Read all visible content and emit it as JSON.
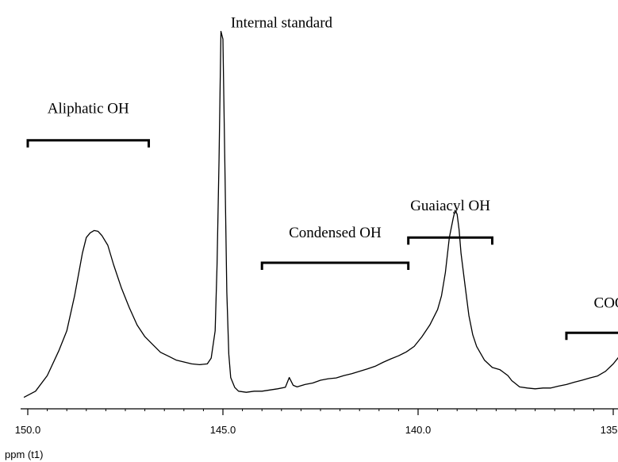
{
  "chart_data": {
    "type": "line",
    "xlabel": "ppm (t1)",
    "ylabel": "",
    "x_reversed": true,
    "xlim": [
      150.5,
      133.5
    ],
    "ylim": [
      0,
      100
    ],
    "grid": false,
    "ticks": [
      {
        "value": 150.0,
        "label": "150.0"
      },
      {
        "value": 145.0,
        "label": "145.0"
      },
      {
        "value": 140.0,
        "label": "140.0"
      },
      {
        "value": 135.0,
        "label": "135.0"
      }
    ],
    "minor_tick_step": 0.5,
    "series": [
      {
        "x": [
          150.1,
          149.8,
          149.5,
          149.2,
          149.0,
          148.8,
          148.6,
          148.5,
          148.4,
          148.3,
          148.2,
          148.1,
          147.95,
          147.8,
          147.6,
          147.4,
          147.2,
          147.0,
          146.8,
          146.6,
          146.4,
          146.2,
          146.0,
          145.8,
          145.6,
          145.4,
          145.3,
          145.2,
          145.15,
          145.1,
          145.05,
          145.0,
          144.95,
          144.9,
          144.85,
          144.8,
          144.7,
          144.6,
          144.4,
          144.2,
          144.0,
          143.8,
          143.6,
          143.4,
          143.3,
          143.2,
          143.1,
          142.9,
          142.7,
          142.5,
          142.3,
          142.1,
          141.9,
          141.7,
          141.5,
          141.3,
          141.1,
          140.9,
          140.7,
          140.5,
          140.3,
          140.1,
          139.9,
          139.7,
          139.5,
          139.4,
          139.3,
          139.2,
          139.1,
          139.05,
          139.0,
          138.95,
          138.9,
          138.8,
          138.7,
          138.6,
          138.5,
          138.3,
          138.1,
          137.9,
          137.7,
          137.6,
          137.5,
          137.4,
          137.2,
          137.0,
          136.8,
          136.6,
          136.4,
          136.2,
          136.0,
          135.8,
          135.6,
          135.4,
          135.2,
          135.0,
          134.8,
          134.7,
          134.6,
          134.55,
          134.5,
          134.45,
          134.4,
          134.3,
          134.2,
          134.1,
          134.0,
          133.8,
          133.6
        ],
        "y": [
          0.9,
          2.5,
          6.5,
          13,
          18,
          27,
          38,
          42,
          43.2,
          43.8,
          43.6,
          42.5,
          40,
          35,
          29,
          24,
          19.5,
          16.5,
          14.5,
          12.5,
          11.5,
          10.5,
          10,
          9.5,
          9.3,
          9.5,
          11,
          18,
          35,
          62,
          95,
          93,
          60,
          28,
          12,
          6,
          3.5,
          2.5,
          2.2,
          2.5,
          2.5,
          2.8,
          3.1,
          3.5,
          6,
          4,
          3.6,
          4.2,
          4.6,
          5.3,
          5.7,
          5.9,
          6.5,
          7.0,
          7.6,
          8.2,
          8.9,
          9.9,
          10.8,
          11.6,
          12.6,
          14,
          16.5,
          19.5,
          23.5,
          27,
          33,
          42,
          47,
          49,
          48,
          44,
          38,
          30,
          22,
          17,
          14,
          10.5,
          8.6,
          8,
          6.5,
          5.2,
          4.4,
          3.6,
          3.3,
          3.1,
          3.3,
          3.3,
          3.8,
          4.2,
          4.8,
          5.3,
          5.9,
          6.4,
          7.6,
          9.5,
          12,
          15.5,
          18,
          19,
          17,
          13,
          8.5,
          5,
          3.5,
          2.5,
          1.7,
          1.2,
          0.8
        ]
      }
    ],
    "annotations": [
      {
        "text": "Internal standard",
        "x": 144.8,
        "y": 96,
        "anchor": "start"
      },
      {
        "text": "Aliphatic OH",
        "x1": 150.0,
        "x2": 146.9,
        "bar_y": 67,
        "label_y": 74
      },
      {
        "text": "Condensed OH",
        "x1": 144.0,
        "x2": 140.25,
        "bar_y": 35.5,
        "label_y": 42
      },
      {
        "text": "Guaiacyl OH",
        "x1": 140.25,
        "x2": 138.1,
        "bar_y": 42,
        "label_y": 49
      },
      {
        "text": "COOH",
        "x1": 136.2,
        "x2": 133.7,
        "bar_y": 17.5,
        "label_y": 24
      }
    ]
  }
}
